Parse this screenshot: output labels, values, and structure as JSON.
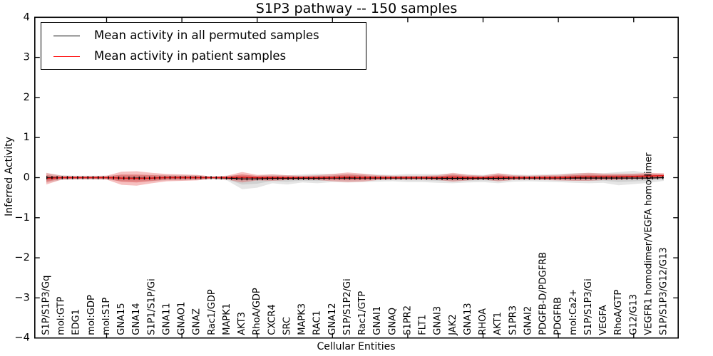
{
  "figure": {
    "title": "S1P3 pathway -- 150 samples",
    "xlabel": "Cellular Entities",
    "ylabel": "Inferred Activity"
  },
  "legend": {
    "items": [
      {
        "label": "Mean activity in all permuted samples",
        "color": "#000000"
      },
      {
        "label": "Mean activity in patient samples",
        "color": "#ff0000"
      }
    ]
  },
  "chart_data": {
    "type": "line",
    "title": "S1P3 pathway -- 150 samples",
    "xlabel": "Cellular Entities",
    "ylabel": "Inferred Activity",
    "ylim": [
      -4,
      4
    ],
    "yticks": [
      {
        "v": 4,
        "label": "4"
      },
      {
        "v": 3,
        "label": "3"
      },
      {
        "v": 2,
        "label": "2"
      },
      {
        "v": 1,
        "label": "1"
      },
      {
        "v": 0,
        "label": "0"
      },
      {
        "v": -1,
        "label": "−1"
      },
      {
        "v": -2,
        "label": "−2"
      },
      {
        "v": -3,
        "label": "−3"
      },
      {
        "v": -4,
        "label": "−4"
      }
    ],
    "xtick_step": 5,
    "grid": false,
    "legend_position": "upper left",
    "categories": [
      "S1P/S1P3/Gq",
      "mol:GTP",
      "EDG1",
      "mol:GDP",
      "mol:S1P",
      "GNA15",
      "GNA14",
      "S1P1/S1P/Gi",
      "GNA11",
      "GNAO1",
      "GNAZ",
      "Rac1/GDP",
      "MAPK1",
      "AKT3",
      "RhoA/GDP",
      "CXCR4",
      "SRC",
      "MAPK3",
      "RAC1",
      "GNA12",
      "S1P/S1P2/Gi",
      "Rac1/GTP",
      "GNAI1",
      "GNAQ",
      "S1PR2",
      "FLT1",
      "GNAI3",
      "JAK2",
      "GNA13",
      "RHOA",
      "AKT1",
      "S1PR3",
      "GNAI2",
      "PDGFB-D/PDGFRB",
      "PDGFRB",
      "mol:Ca2+",
      "S1P/S1P3/Gi",
      "VEGFA",
      "RhoA/GTP",
      "G12/G13",
      "VEGFR1 homodimer/VEGFA homodimer",
      "S1P/S1P3/G12/G13"
    ],
    "series": [
      {
        "name": "Mean activity in all permuted samples",
        "color": "#000000",
        "values": [
          0,
          0,
          0,
          0,
          0,
          -0.01,
          -0.01,
          -0.01,
          0,
          0,
          0,
          0,
          -0.01,
          -0.03,
          -0.03,
          -0.02,
          -0.02,
          -0.02,
          -0.02,
          -0.01,
          -0.01,
          -0.01,
          -0.01,
          -0.01,
          -0.01,
          -0.01,
          -0.02,
          -0.02,
          -0.02,
          -0.02,
          -0.02,
          -0.01,
          -0.01,
          -0.01,
          -0.01,
          -0.01,
          -0.01,
          -0.01,
          -0.01,
          -0.01,
          -0.01,
          0
        ],
        "band_hi": [
          0.11,
          0.06,
          0.05,
          0.05,
          0.05,
          0.08,
          0.08,
          0.08,
          0.07,
          0.07,
          0.06,
          0.03,
          0.06,
          0.1,
          0.08,
          0.1,
          0.08,
          0.1,
          0.12,
          0.1,
          0.11,
          0.1,
          0.09,
          0.08,
          0.1,
          0.1,
          0.11,
          0.12,
          0.1,
          0.09,
          0.12,
          0.09,
          0.08,
          0.09,
          0.1,
          0.12,
          0.13,
          0.12,
          0.15,
          0.18,
          0.12,
          0.08
        ],
        "band_lo": [
          0.13,
          0.06,
          0.05,
          0.05,
          0.05,
          0.08,
          0.08,
          0.08,
          0.07,
          0.07,
          0.06,
          0.04,
          0.06,
          0.26,
          0.22,
          0.12,
          0.15,
          0.1,
          0.12,
          0.1,
          0.11,
          0.1,
          0.09,
          0.08,
          0.1,
          0.1,
          0.11,
          0.12,
          0.1,
          0.09,
          0.12,
          0.09,
          0.08,
          0.09,
          0.1,
          0.12,
          0.13,
          0.12,
          0.18,
          0.15,
          0.12,
          0.08
        ]
      },
      {
        "name": "Mean activity in patient samples",
        "color": "#ff0000",
        "values": [
          -0.02,
          0,
          0,
          0,
          0,
          -0.01,
          -0.02,
          -0.01,
          0,
          0,
          0,
          0,
          0,
          0.01,
          0,
          0,
          0,
          0,
          0,
          0,
          0.01,
          0,
          0,
          0,
          0,
          0,
          0,
          0.01,
          0,
          0,
          0.01,
          0,
          0,
          0,
          0,
          0.01,
          0.02,
          0.02,
          0.02,
          0.03,
          0.04,
          0.05
        ],
        "band_hi": [
          0.14,
          0.05,
          0.04,
          0.04,
          0.05,
          0.16,
          0.18,
          0.13,
          0.09,
          0.08,
          0.07,
          0.03,
          0.05,
          0.13,
          0.07,
          0.08,
          0.06,
          0.05,
          0.06,
          0.09,
          0.12,
          0.1,
          0.06,
          0.05,
          0.05,
          0.05,
          0.06,
          0.11,
          0.07,
          0.05,
          0.1,
          0.06,
          0.05,
          0.06,
          0.07,
          0.09,
          0.1,
          0.08,
          0.08,
          0.07,
          0.08,
          0.06
        ],
        "band_lo": [
          0.15,
          0.05,
          0.04,
          0.04,
          0.05,
          0.17,
          0.18,
          0.13,
          0.09,
          0.08,
          0.07,
          0.03,
          0.05,
          0.13,
          0.07,
          0.08,
          0.06,
          0.05,
          0.06,
          0.09,
          0.12,
          0.1,
          0.06,
          0.05,
          0.05,
          0.05,
          0.06,
          0.11,
          0.07,
          0.05,
          0.1,
          0.06,
          0.05,
          0.06,
          0.07,
          0.09,
          0.1,
          0.08,
          0.08,
          0.07,
          0.08,
          0.06
        ]
      }
    ]
  }
}
